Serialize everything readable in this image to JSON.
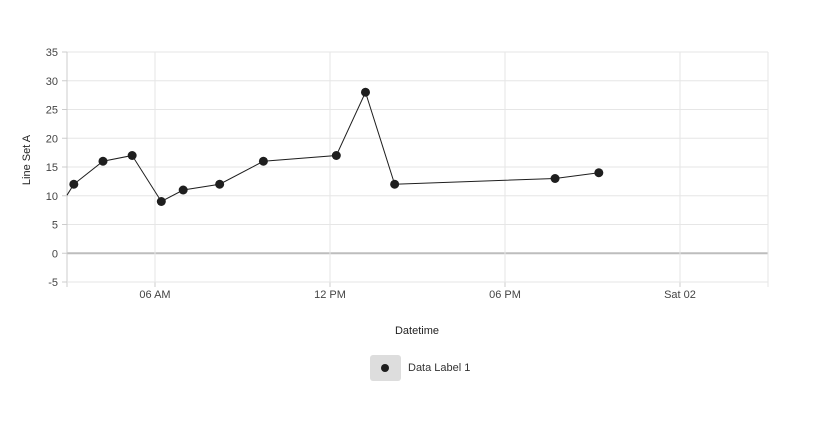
{
  "chart_data": {
    "type": "line",
    "title": "",
    "xlabel": "Datetime",
    "ylabel": "Line Set A",
    "x_tick_labels": [
      "06 AM",
      "12 PM",
      "06 PM",
      "Sat 02"
    ],
    "y_tick_labels": [
      "35",
      "30",
      "25",
      "20",
      "15",
      "10",
      "5",
      "0",
      "-5"
    ],
    "ylim": [
      -5,
      35
    ],
    "grid": true,
    "legend_position": "bottom",
    "series": [
      {
        "name": "Data Label 1",
        "color": "#1e1e1e",
        "points": [
          {
            "x": "03:13",
            "y": 12
          },
          {
            "x": "04:13",
            "y": 16
          },
          {
            "x": "05:13",
            "y": 17
          },
          {
            "x": "06:13",
            "y": 9
          },
          {
            "x": "06:58",
            "y": 11
          },
          {
            "x": "08:13",
            "y": 12
          },
          {
            "x": "09:43",
            "y": 16
          },
          {
            "x": "12:13",
            "y": 17
          },
          {
            "x": "13:13",
            "y": 28
          },
          {
            "x": "14:13",
            "y": 12
          },
          {
            "x": "19:43",
            "y": 13
          },
          {
            "x": "21:13",
            "y": 14
          }
        ]
      }
    ]
  }
}
